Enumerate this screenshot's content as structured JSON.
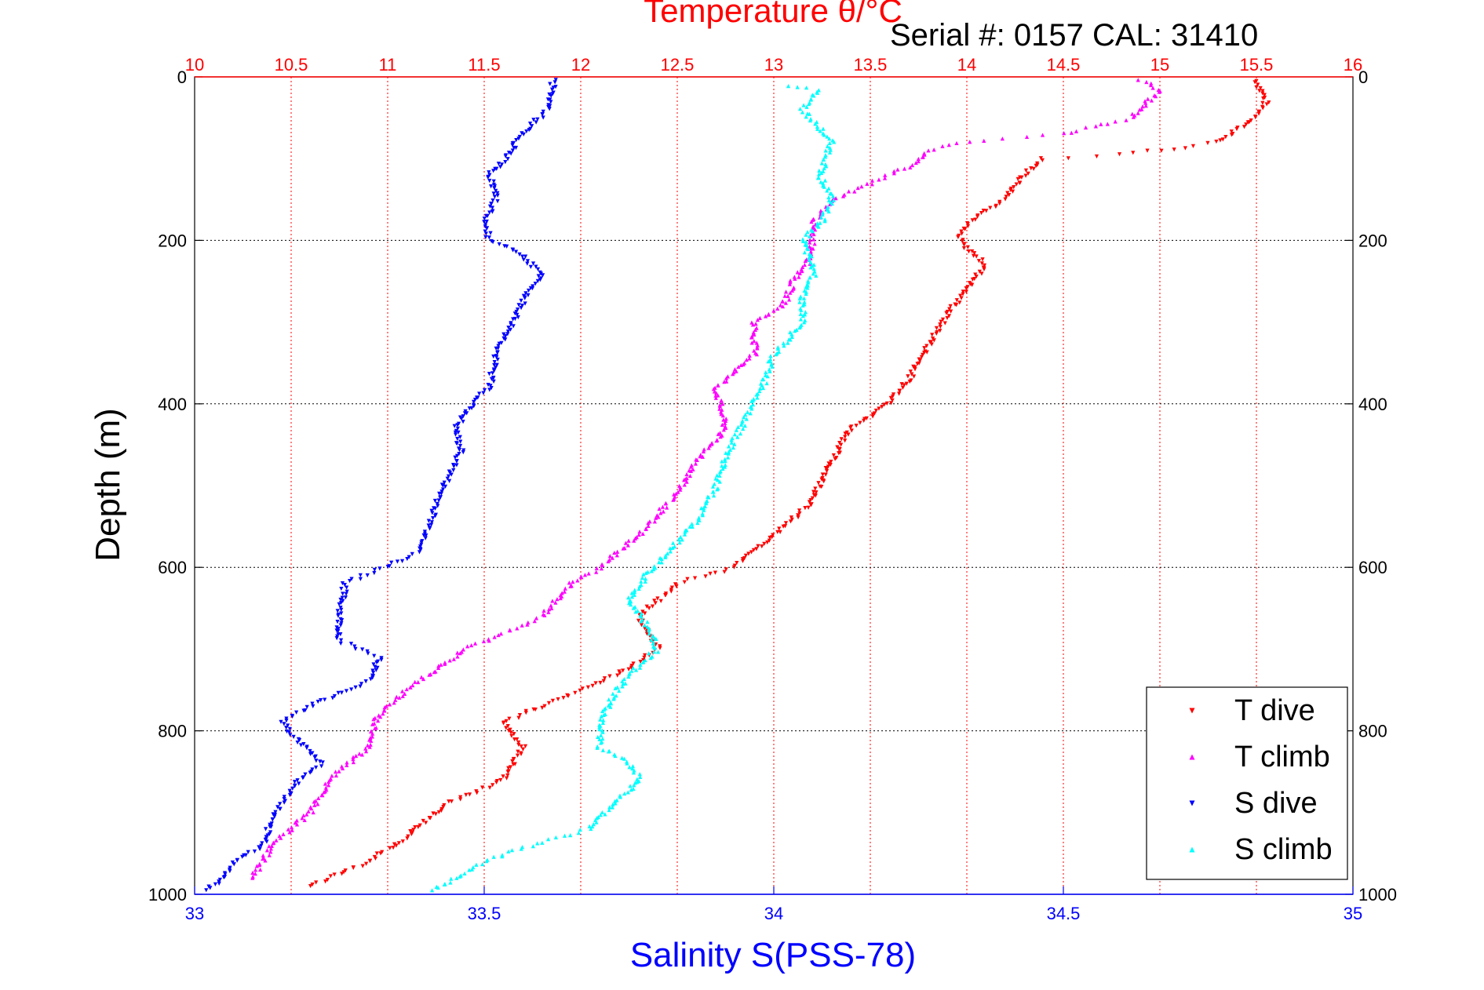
{
  "header": {
    "title": "Temperature θ/°C",
    "serial": "Serial #: 0157  CAL: 31410"
  },
  "colors": {
    "t_dive": "#ff0000",
    "t_climb": "#ff00ff",
    "s_dive": "#0000ff",
    "s_climb": "#00ffff",
    "temp_axis": "#ff0000",
    "sal_axis": "#0000ff"
  },
  "chart_data": {
    "type": "scatter",
    "title": "Temperature θ/°C",
    "annotation": "Serial #: 0157  CAL: 31410",
    "ylabel": "Depth (m)",
    "xlabel": "Salinity S(PSS-78)",
    "x2label": "Temperature θ/°C",
    "ylim": [
      0,
      1000
    ],
    "y_reversed": true,
    "xlim": [
      33,
      35
    ],
    "x2lim": [
      10,
      16
    ],
    "x_ticks": [
      "33",
      "33.5",
      "34",
      "34.5",
      "35"
    ],
    "x2_ticks": [
      "10",
      "10.5",
      "11",
      "11.5",
      "12",
      "12.5",
      "13",
      "13.5",
      "14",
      "14.5",
      "15",
      "15.5",
      "16"
    ],
    "y_ticks": [
      "0",
      "200",
      "400",
      "600",
      "800",
      "1000"
    ],
    "grid": true,
    "legend_position": "bottom-right",
    "series": [
      {
        "name": "T dive",
        "axis": "temperature",
        "marker": "triangle-down",
        "points": [
          [
            15.5,
            5
          ],
          [
            15.55,
            30
          ],
          [
            15.5,
            50
          ],
          [
            15.3,
            80
          ],
          [
            15.0,
            90
          ],
          [
            14.8,
            95
          ],
          [
            14.4,
            100
          ],
          [
            14.3,
            120
          ],
          [
            14.2,
            150
          ],
          [
            14.0,
            180
          ],
          [
            13.95,
            195
          ],
          [
            14.0,
            210
          ],
          [
            14.1,
            230
          ],
          [
            14.0,
            260
          ],
          [
            13.9,
            290
          ],
          [
            13.8,
            330
          ],
          [
            13.7,
            370
          ],
          [
            13.6,
            400
          ],
          [
            13.4,
            430
          ],
          [
            13.3,
            470
          ],
          [
            13.2,
            520
          ],
          [
            13.0,
            560
          ],
          [
            12.9,
            580
          ],
          [
            12.8,
            600
          ],
          [
            12.5,
            620
          ],
          [
            12.3,
            660
          ],
          [
            12.4,
            700
          ],
          [
            12.2,
            730
          ],
          [
            11.9,
            760
          ],
          [
            11.6,
            790
          ],
          [
            11.7,
            820
          ],
          [
            11.6,
            860
          ],
          [
            11.3,
            890
          ],
          [
            11.1,
            930
          ],
          [
            10.9,
            960
          ],
          [
            10.6,
            990
          ]
        ]
      },
      {
        "name": "T climb",
        "axis": "temperature",
        "marker": "triangle-up",
        "points": [
          [
            14.9,
            5
          ],
          [
            15.0,
            15
          ],
          [
            14.85,
            50
          ],
          [
            14.5,
            70
          ],
          [
            14.0,
            80
          ],
          [
            13.8,
            90
          ],
          [
            13.7,
            110
          ],
          [
            13.5,
            130
          ],
          [
            13.3,
            150
          ],
          [
            13.2,
            180
          ],
          [
            13.2,
            220
          ],
          [
            13.1,
            250
          ],
          [
            13.05,
            280
          ],
          [
            12.9,
            300
          ],
          [
            12.9,
            340
          ],
          [
            12.7,
            380
          ],
          [
            12.75,
            430
          ],
          [
            12.6,
            470
          ],
          [
            12.5,
            510
          ],
          [
            12.3,
            560
          ],
          [
            12.1,
            600
          ],
          [
            11.95,
            620
          ],
          [
            11.8,
            660
          ],
          [
            11.4,
            700
          ],
          [
            11.1,
            750
          ],
          [
            10.95,
            780
          ],
          [
            10.9,
            820
          ],
          [
            10.7,
            860
          ],
          [
            10.6,
            900
          ],
          [
            10.4,
            940
          ],
          [
            10.3,
            980
          ]
        ]
      },
      {
        "name": "S dive",
        "axis": "salinity",
        "marker": "triangle-down",
        "points": [
          [
            33.62,
            5
          ],
          [
            33.61,
            40
          ],
          [
            33.55,
            80
          ],
          [
            33.55,
            90
          ],
          [
            33.51,
            120
          ],
          [
            33.52,
            150
          ],
          [
            33.5,
            180
          ],
          [
            33.51,
            200
          ],
          [
            33.55,
            210
          ],
          [
            33.6,
            240
          ],
          [
            33.57,
            270
          ],
          [
            33.55,
            300
          ],
          [
            33.52,
            340
          ],
          [
            33.51,
            380
          ],
          [
            33.48,
            400
          ],
          [
            33.45,
            430
          ],
          [
            33.46,
            460
          ],
          [
            33.43,
            500
          ],
          [
            33.41,
            540
          ],
          [
            33.39,
            580
          ],
          [
            33.33,
            600
          ],
          [
            33.26,
            620
          ],
          [
            33.25,
            660
          ],
          [
            33.25,
            690
          ],
          [
            33.32,
            710
          ],
          [
            33.3,
            740
          ],
          [
            33.2,
            770
          ],
          [
            33.15,
            790
          ],
          [
            33.19,
            820
          ],
          [
            33.22,
            840
          ],
          [
            33.18,
            860
          ],
          [
            33.15,
            890
          ],
          [
            33.13,
            910
          ],
          [
            33.12,
            940
          ],
          [
            33.07,
            960
          ],
          [
            33.05,
            980
          ],
          [
            33.02,
            995
          ]
        ]
      },
      {
        "name": "S climb",
        "axis": "salinity",
        "marker": "triangle-up",
        "points": [
          [
            34.02,
            10
          ],
          [
            34.08,
            15
          ],
          [
            34.05,
            40
          ],
          [
            34.1,
            80
          ],
          [
            34.08,
            120
          ],
          [
            34.1,
            150
          ],
          [
            34.08,
            180
          ],
          [
            34.05,
            200
          ],
          [
            34.07,
            240
          ],
          [
            34.05,
            270
          ],
          [
            34.05,
            300
          ],
          [
            34.0,
            340
          ],
          [
            33.98,
            380
          ],
          [
            33.95,
            420
          ],
          [
            33.92,
            460
          ],
          [
            33.9,
            500
          ],
          [
            33.87,
            540
          ],
          [
            33.82,
            580
          ],
          [
            33.78,
            610
          ],
          [
            33.75,
            640
          ],
          [
            33.78,
            670
          ],
          [
            33.8,
            700
          ],
          [
            33.75,
            730
          ],
          [
            33.72,
            760
          ],
          [
            33.7,
            790
          ],
          [
            33.7,
            820
          ],
          [
            33.75,
            840
          ],
          [
            33.77,
            860
          ],
          [
            33.72,
            890
          ],
          [
            33.68,
            920
          ],
          [
            33.58,
            940
          ],
          [
            33.5,
            960
          ],
          [
            33.45,
            980
          ],
          [
            33.41,
            995
          ]
        ]
      }
    ]
  }
}
